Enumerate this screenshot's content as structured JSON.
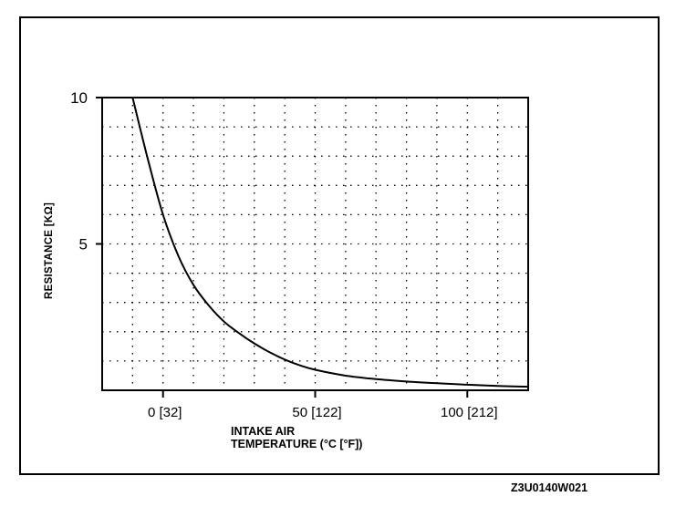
{
  "chart_data": {
    "type": "line",
    "ylabel": "RESISTANCE [KΩ]",
    "xlabel_lines": [
      "INTAKE AIR",
      "TEMPERATURE  (°C [°F])"
    ],
    "yticks": [
      {
        "value": 10,
        "label": "10"
      },
      {
        "value": 5,
        "label": "5"
      }
    ],
    "xticks": [
      {
        "value": 0,
        "label": "0 [32]"
      },
      {
        "value": 50,
        "label": "50 [122]"
      },
      {
        "value": 100,
        "label": "100 [212]"
      }
    ],
    "xlim": [
      -20,
      120
    ],
    "ylim": [
      0,
      10
    ],
    "grid": true,
    "grid_style": "dotted",
    "series": [
      {
        "x": [
          -10,
          -5,
          0,
          5,
          10,
          15,
          20,
          25,
          30,
          35,
          40,
          45,
          50,
          60,
          70,
          80,
          90,
          100,
          110,
          120
        ],
        "y": [
          10,
          7.9,
          6.0,
          4.6,
          3.6,
          2.9,
          2.35,
          1.95,
          1.6,
          1.3,
          1.05,
          0.85,
          0.7,
          0.5,
          0.38,
          0.3,
          0.24,
          0.19,
          0.15,
          0.12
        ]
      }
    ],
    "color": "#000000"
  },
  "figure_code": "Z3U0140W021"
}
